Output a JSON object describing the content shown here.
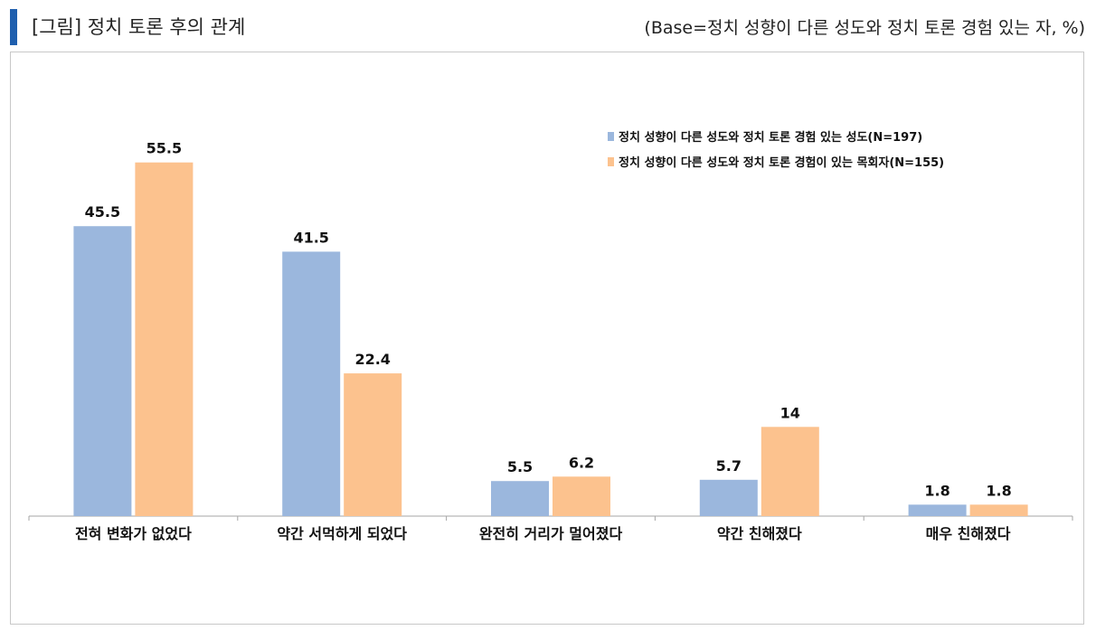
{
  "header": {
    "title": "[그림] 정치 토론 후의 관계",
    "base_note": "(Base=정치 성향이 다른 성도와 정치 토론 경험 있는 자, %)"
  },
  "colors": {
    "accent": "#1f5fae",
    "series1": "#9bb7dd",
    "series2": "#fcc28e"
  },
  "chart_data": {
    "type": "bar",
    "categories": [
      "전혀 변화가 없었다",
      "약간 서먹하게 되었다",
      "완전히 거리가 멀어졌다",
      "약간 친해졌다",
      "매우 친해졌다"
    ],
    "series": [
      {
        "name": "정치 성향이 다른 성도와 정치 토론 경험 있는 성도(N=197)",
        "values": [
          45.5,
          41.5,
          5.5,
          5.7,
          1.8
        ],
        "labels": [
          "45.5",
          "41.5",
          "5.5",
          "5.7",
          "1.8"
        ]
      },
      {
        "name": "정치 성향이 다른 성도와 정치 토론 경험이 있는 목회자(N=155)",
        "values": [
          55.5,
          22.4,
          6.2,
          14,
          1.8
        ],
        "labels": [
          "55.5",
          "22.4",
          "6.2",
          "14",
          "1.8"
        ]
      }
    ],
    "ylim": [
      0,
      60
    ],
    "grid": false,
    "legend_position": "top-right"
  }
}
